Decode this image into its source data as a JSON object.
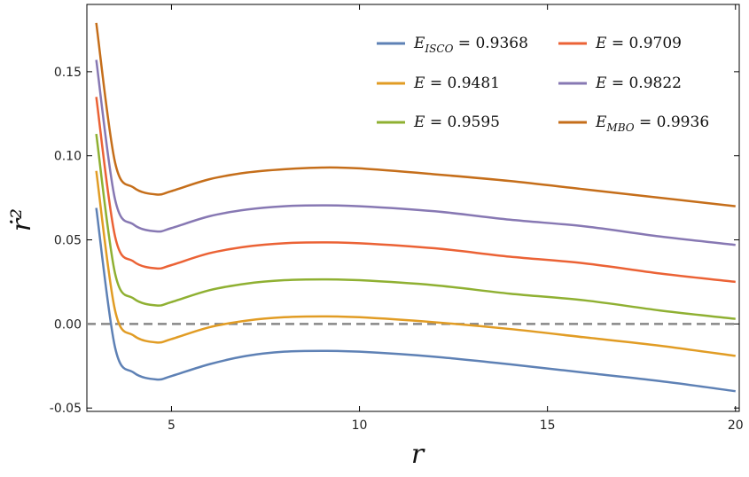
{
  "chart_data": {
    "type": "line",
    "xlabel": "r",
    "ylabel": "ṙ²",
    "xlim": [
      2.75,
      20.1
    ],
    "ylim": [
      -0.052,
      0.19
    ],
    "xticks": [
      5,
      10,
      15,
      20
    ],
    "xtick_labels": [
      "5",
      "10",
      "15",
      "20"
    ],
    "yticks": [
      -0.05,
      0,
      0.05,
      0.1,
      0.15
    ],
    "ytick_labels": [
      "-0.05",
      "0.00",
      "0.05",
      "0.10",
      "0.15"
    ],
    "grid": false,
    "legend_position": "top-right",
    "reference_line": {
      "y": 0,
      "style": "dashed",
      "color": "#888888"
    },
    "x": [
      3,
      3.5,
      4,
      4.6,
      5,
      6,
      7,
      8,
      9,
      10,
      12,
      14,
      16,
      18,
      20
    ],
    "series": [
      {
        "name": "E_ISCO = 0.9368",
        "legend_base": "E",
        "legend_sub": "ISCO",
        "legend_value": "= 0.9368",
        "color": "#5E81B5",
        "values": [
          0.069,
          -0.014,
          -0.029,
          -0.033,
          -0.031,
          -0.024,
          -0.019,
          -0.0165,
          -0.016,
          -0.0165,
          -0.0195,
          -0.024,
          -0.029,
          -0.034,
          -0.04
        ]
      },
      {
        "name": "E = 0.9481",
        "legend_base": "E",
        "legend_sub": "",
        "legend_value": "= 0.9481",
        "color": "#E19C24",
        "values": [
          0.091,
          0.008,
          -0.007,
          -0.011,
          -0.009,
          -0.002,
          0.002,
          0.004,
          0.0045,
          0.004,
          0.001,
          -0.003,
          -0.008,
          -0.013,
          -0.019
        ]
      },
      {
        "name": "E = 0.9595",
        "legend_base": "E",
        "legend_sub": "",
        "legend_value": "= 0.9595",
        "color": "#8FB032",
        "values": [
          0.113,
          0.03,
          0.015,
          0.011,
          0.013,
          0.02,
          0.024,
          0.026,
          0.0265,
          0.026,
          0.023,
          0.018,
          0.014,
          0.008,
          0.003
        ]
      },
      {
        "name": "E = 0.9709",
        "legend_base": "E",
        "legend_sub": "",
        "legend_value": "= 0.9709",
        "color": "#EB6235",
        "values": [
          0.135,
          0.052,
          0.037,
          0.033,
          0.035,
          0.042,
          0.046,
          0.048,
          0.0485,
          0.048,
          0.045,
          0.04,
          0.036,
          0.03,
          0.025
        ]
      },
      {
        "name": "E = 0.9822",
        "legend_base": "E",
        "legend_sub": "",
        "legend_value": "= 0.9822",
        "color": "#8778B3",
        "values": [
          0.157,
          0.074,
          0.059,
          0.055,
          0.057,
          0.064,
          0.068,
          0.07,
          0.0705,
          0.07,
          0.067,
          0.062,
          0.058,
          0.052,
          0.047
        ]
      },
      {
        "name": "E_MBO = 0.9936",
        "legend_base": "E",
        "legend_sub": "MBO",
        "legend_value": "= 0.9936",
        "color": "#C56E1A",
        "values": [
          0.179,
          0.096,
          0.081,
          0.077,
          0.079,
          0.086,
          0.09,
          0.092,
          0.093,
          0.0925,
          0.089,
          0.085,
          0.08,
          0.075,
          0.07
        ]
      }
    ]
  }
}
